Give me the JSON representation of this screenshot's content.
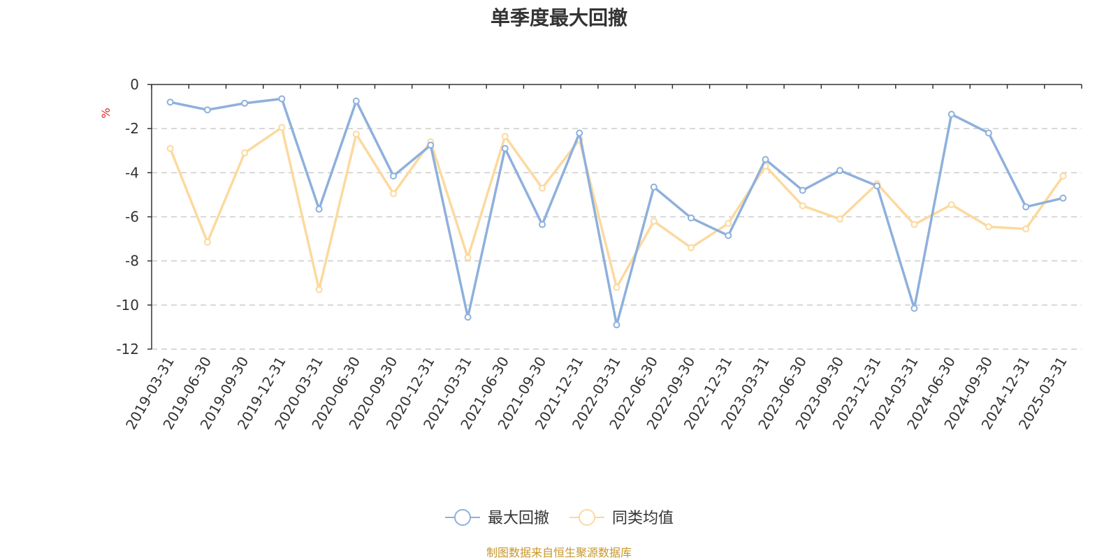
{
  "chart_data": {
    "type": "line",
    "title": "单季度最大回撤",
    "ylabel": "%",
    "xlabel": "",
    "ylim": [
      -12,
      0
    ],
    "yticks": [
      0,
      -2,
      -4,
      -6,
      -8,
      -10,
      -12
    ],
    "grid": true,
    "legend_position": "bottom",
    "categories": [
      "2019-03-31",
      "2019-06-30",
      "2019-09-30",
      "2019-12-31",
      "2020-03-31",
      "2020-06-30",
      "2020-09-30",
      "2020-12-31",
      "2021-03-31",
      "2021-06-30",
      "2021-09-30",
      "2021-12-31",
      "2022-03-31",
      "2022-06-30",
      "2022-09-30",
      "2022-12-31",
      "2023-03-31",
      "2023-06-30",
      "2023-09-30",
      "2023-12-31",
      "2024-03-31",
      "2024-06-30",
      "2024-09-30",
      "2024-12-31",
      "2025-03-31"
    ],
    "series": [
      {
        "name": "最大回撤",
        "color": "#8eb0dc",
        "values": [
          -0.8,
          -1.15,
          -0.85,
          -0.65,
          -5.65,
          -0.75,
          -4.15,
          -2.75,
          -10.55,
          -2.9,
          -6.35,
          -2.2,
          -10.9,
          -4.65,
          -6.05,
          -6.85,
          -3.4,
          -4.8,
          -3.9,
          -4.6,
          -10.15,
          -1.35,
          -2.2,
          -5.55,
          -5.15
        ]
      },
      {
        "name": "同类均值",
        "color": "#fcd99e",
        "values": [
          -2.9,
          -7.15,
          -3.1,
          -1.95,
          -9.3,
          -2.25,
          -4.95,
          -2.6,
          -7.85,
          -2.35,
          -4.7,
          -2.5,
          -9.2,
          -6.2,
          -7.4,
          -6.3,
          -3.7,
          -5.5,
          -6.1,
          -4.5,
          -6.35,
          -5.45,
          -6.45,
          -6.55,
          -4.15
        ]
      }
    ]
  },
  "footer": {
    "source": "制图数据来自恒生聚源数据库"
  }
}
